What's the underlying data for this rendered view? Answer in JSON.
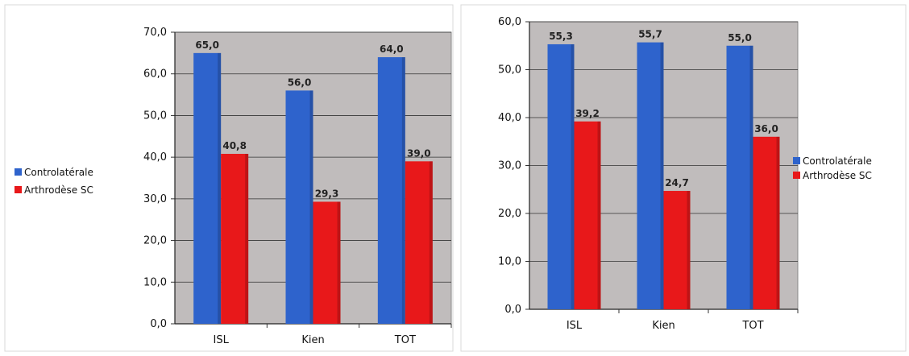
{
  "colors": {
    "plot_bg": "#c0bcbc",
    "series": [
      "#2e63cc",
      "#e8181a"
    ],
    "frame": "#d8d8d8"
  },
  "chart_data": [
    {
      "type": "bar",
      "title": "",
      "xlabel": "",
      "ylabel": "",
      "categories": [
        "ISL",
        "Kien",
        "TOT"
      ],
      "series": [
        {
          "name": "Controlatérale",
          "values": [
            65.0,
            56.0,
            64.0
          ],
          "labels": [
            "65,0",
            "56,0",
            "64,0"
          ]
        },
        {
          "name": "Arthrodèse SC",
          "values": [
            40.8,
            29.3,
            39.0
          ],
          "labels": [
            "40,8",
            "29,3",
            "39,0"
          ]
        }
      ],
      "ylim": [
        0,
        70
      ],
      "yticks": [
        "0,0",
        "10,0",
        "20,0",
        "30,0",
        "40,0",
        "50,0",
        "60,0",
        "70,0"
      ],
      "grid": true,
      "legend_position": "left"
    },
    {
      "type": "bar",
      "title": "",
      "xlabel": "",
      "ylabel": "",
      "categories": [
        "ISL",
        "Kien",
        "TOT"
      ],
      "series": [
        {
          "name": "Controlatérale",
          "values": [
            55.3,
            55.7,
            55.0
          ],
          "labels": [
            "55,3",
            "55,7",
            "55,0"
          ]
        },
        {
          "name": "Arthrodèse SC",
          "values": [
            39.2,
            24.7,
            36.0
          ],
          "labels": [
            "39,2",
            "24,7",
            "36,0"
          ]
        }
      ],
      "ylim": [
        0,
        60
      ],
      "yticks": [
        "0,0",
        "10,0",
        "20,0",
        "30,0",
        "40,0",
        "50,0",
        "60,0"
      ],
      "grid": true,
      "legend_position": "right"
    }
  ]
}
